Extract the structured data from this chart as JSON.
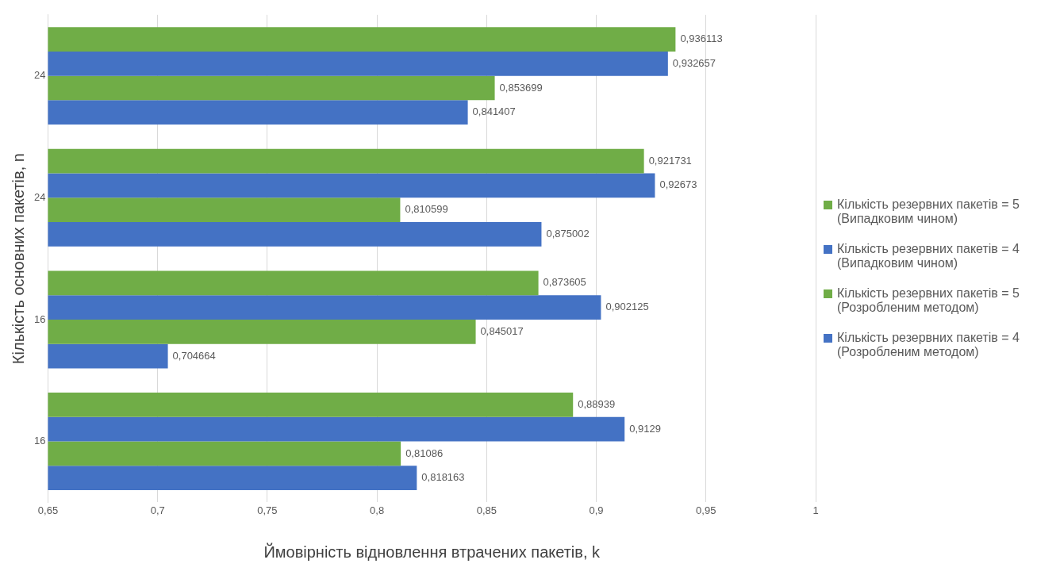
{
  "chart_data": {
    "type": "bar",
    "orientation": "horizontal",
    "xlabel": "Ймовірність відновлення втрачених пакетів, k",
    "ylabel": "Кількість основних пакетів, n",
    "categories": [
      "24",
      "24",
      "16",
      "16"
    ],
    "series": [
      {
        "name": "Кількість резервних пакетів = 5 (Випадковим чином)",
        "color": "#70ad47",
        "values": [
          0.936113,
          0.921731,
          0.873605,
          0.88939
        ],
        "value_labels": [
          "0,936113",
          "0,921731",
          "0,873605",
          "0,88939"
        ]
      },
      {
        "name": "Кількість резервних пакетів = 4 (Випадковим чином)",
        "color": "#4472c4",
        "values": [
          0.932657,
          0.92673,
          0.902125,
          0.9129
        ],
        "value_labels": [
          "0,932657",
          "0,92673",
          "0,902125",
          "0,9129"
        ]
      },
      {
        "name": "Кількість резервних пакетів = 5 (Розробленим методом)",
        "color": "#70ad47",
        "values": [
          0.853699,
          0.810599,
          0.845017,
          0.81086
        ],
        "value_labels": [
          "0,853699",
          "0,810599",
          "0,845017",
          "0,81086"
        ]
      },
      {
        "name": "Кількість резервних пакетів = 4 (Розробленим методом)",
        "color": "#4472c4",
        "values": [
          0.841407,
          0.875002,
          0.704664,
          0.818163
        ],
        "value_labels": [
          "0,841407",
          "0,875002",
          "0,704664",
          "0,818163"
        ]
      }
    ],
    "xlim": [
      0.65,
      1
    ],
    "xticks": [
      {
        "value": 0.65,
        "label": "0,65"
      },
      {
        "value": 0.7,
        "label": "0,7"
      },
      {
        "value": 0.75,
        "label": "0,75"
      },
      {
        "value": 0.8,
        "label": "0,8"
      },
      {
        "value": 0.85,
        "label": "0,85"
      },
      {
        "value": 0.9,
        "label": "0,9"
      },
      {
        "value": 0.95,
        "label": "0,95"
      },
      {
        "value": 1,
        "label": "1"
      }
    ],
    "grid": "x",
    "legend": "right"
  }
}
